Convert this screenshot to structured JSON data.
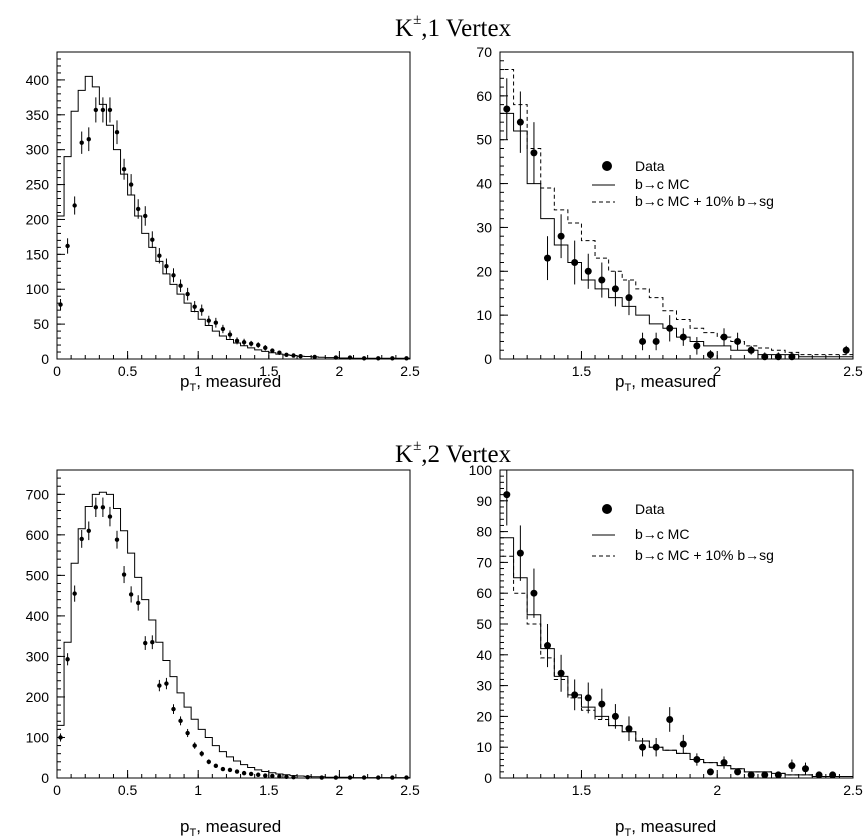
{
  "rows": [
    {
      "title_main": "K",
      "title_sup": "±",
      "title_rest": ",1 Vertex"
    },
    {
      "title_main": "K",
      "title_sup": "±",
      "title_rest": ",2 Vertex"
    }
  ],
  "legend": {
    "data": "Data",
    "mc": "b→c MC",
    "mc_sg": "b→c MC + 10% b→sg"
  },
  "chart_data": [
    {
      "type": "histogram",
      "xlim": [
        0,
        2.5
      ],
      "ylim": [
        0,
        440
      ],
      "xticks": [
        0,
        0.5,
        1,
        1.5,
        2,
        2.5
      ],
      "xtick_labels": [
        "0",
        "0.5",
        "1",
        "1.5",
        "2",
        "2.5"
      ],
      "yticks": [
        0,
        50,
        100,
        150,
        200,
        250,
        300,
        350,
        400
      ],
      "xlabel_main": "p",
      "xlabel_sub": "T",
      "xlabel_rest": ", measured",
      "grid": false,
      "legend": "none",
      "series": [
        {
          "kind": "step",
          "style": "solid",
          "edges": [
            0.0,
            0.05,
            0.1,
            0.15,
            0.2,
            0.25,
            0.3,
            0.35,
            0.4,
            0.45,
            0.5,
            0.55,
            0.6,
            0.65,
            0.7,
            0.75,
            0.8,
            0.85,
            0.9,
            0.95,
            1.0,
            1.05,
            1.1,
            1.15,
            1.2,
            1.25,
            1.3,
            1.35,
            1.4,
            1.45,
            1.5,
            1.55,
            1.6,
            1.65,
            1.7,
            1.75,
            1.8,
            1.85,
            1.9,
            1.95,
            2.0,
            2.05,
            2.1,
            2.15,
            2.2,
            2.25,
            2.3,
            2.35,
            2.4,
            2.45,
            2.5
          ],
          "values": [
            205,
            290,
            355,
            385,
            405,
            390,
            365,
            335,
            300,
            265,
            235,
            205,
            180,
            160,
            140,
            122,
            107,
            93,
            80,
            68,
            57,
            48,
            40,
            33,
            28,
            23,
            19,
            16,
            13,
            11,
            9,
            7,
            6,
            5,
            4,
            3.5,
            3,
            2.5,
            2,
            2,
            1.5,
            1.5,
            1,
            1,
            1,
            1,
            1,
            1,
            1,
            1
          ]
        }
      ],
      "points": {
        "x": [
          0.025,
          0.075,
          0.125,
          0.175,
          0.225,
          0.275,
          0.325,
          0.375,
          0.425,
          0.475,
          0.525,
          0.575,
          0.625,
          0.675,
          0.725,
          0.775,
          0.825,
          0.875,
          0.925,
          0.975,
          1.025,
          1.075,
          1.125,
          1.175,
          1.225,
          1.275,
          1.325,
          1.375,
          1.425,
          1.475,
          1.525,
          1.575,
          1.625,
          1.675,
          1.725,
          1.825,
          1.975,
          2.075,
          2.175,
          2.275,
          2.375,
          2.475
        ],
        "y": [
          78,
          162,
          220,
          310,
          315,
          357,
          357,
          357,
          325,
          272,
          250,
          215,
          205,
          171,
          148,
          133,
          120,
          105,
          93,
          75,
          70,
          55,
          52,
          43,
          35,
          26,
          24,
          22,
          20,
          16,
          12,
          9,
          6,
          5,
          4,
          3,
          2,
          2,
          1,
          1,
          1,
          1
        ],
        "err": [
          8,
          11,
          13,
          16,
          17,
          18,
          18,
          18,
          17,
          15,
          15,
          14,
          14,
          12,
          11,
          11,
          10,
          9,
          9,
          8,
          8,
          7,
          7,
          6,
          6,
          5,
          5,
          4,
          4,
          4,
          3,
          3,
          2,
          2,
          2,
          2,
          1,
          1,
          1,
          1,
          1,
          1
        ]
      }
    },
    {
      "type": "histogram",
      "xlim": [
        1.2,
        2.5
      ],
      "ylim": [
        0,
        70
      ],
      "xticks": [
        1.5,
        2,
        2.5
      ],
      "xtick_labels": [
        "1.5",
        "2",
        "2.5"
      ],
      "yticks": [
        0,
        10,
        20,
        30,
        40,
        50,
        60,
        70
      ],
      "xlabel_main": "p",
      "xlabel_sub": "T",
      "xlabel_rest": ", measured",
      "grid": false,
      "legend": "upper-middle",
      "series": [
        {
          "kind": "step",
          "style": "solid",
          "name": "b→c MC",
          "edges": [
            1.2,
            1.25,
            1.3,
            1.35,
            1.4,
            1.45,
            1.5,
            1.55,
            1.6,
            1.65,
            1.7,
            1.75,
            1.8,
            1.85,
            1.9,
            1.95,
            2.0,
            2.05,
            2.1,
            2.15,
            2.2,
            2.25,
            2.3,
            2.35,
            2.4,
            2.45,
            2.5
          ],
          "values": [
            56,
            52,
            40,
            32,
            26,
            22,
            18,
            16,
            14,
            12,
            10,
            8,
            7,
            5,
            4,
            3,
            3,
            2,
            2,
            1,
            1,
            1,
            0.5,
            0.5,
            0.5,
            0.5
          ]
        },
        {
          "kind": "step",
          "style": "dashed",
          "name": "b→c MC + 10% b→sg",
          "edges": [
            1.2,
            1.25,
            1.3,
            1.35,
            1.4,
            1.45,
            1.5,
            1.55,
            1.6,
            1.65,
            1.7,
            1.75,
            1.8,
            1.85,
            1.9,
            1.95,
            2.0,
            2.05,
            2.1,
            2.15,
            2.2,
            2.25,
            2.3,
            2.35,
            2.4,
            2.45,
            2.5
          ],
          "values": [
            66,
            58,
            48,
            39,
            34,
            31,
            27,
            23,
            20,
            18,
            16,
            14,
            11,
            9,
            7,
            6,
            5,
            4,
            3,
            2.5,
            2,
            1.5,
            1,
            1,
            1,
            1
          ]
        }
      ],
      "points": {
        "name": "Data",
        "x": [
          1.225,
          1.275,
          1.325,
          1.375,
          1.425,
          1.475,
          1.525,
          1.575,
          1.625,
          1.675,
          1.725,
          1.775,
          1.825,
          1.875,
          1.925,
          1.975,
          2.025,
          2.075,
          2.125,
          2.175,
          2.225,
          2.275,
          2.475
        ],
        "y": [
          57,
          54,
          47,
          23,
          28,
          22,
          20,
          18,
          16,
          14,
          4,
          4,
          7,
          5,
          3,
          1,
          5,
          4,
          2,
          0.5,
          0.5,
          0.5,
          2
        ],
        "err": [
          7,
          7,
          7,
          5,
          5,
          5,
          4,
          4,
          4,
          4,
          2,
          2,
          3,
          2,
          2,
          1,
          2,
          2,
          1,
          1,
          1,
          1,
          1
        ]
      }
    },
    {
      "type": "histogram",
      "xlim": [
        0,
        2.5
      ],
      "ylim": [
        0,
        760
      ],
      "xticks": [
        0,
        0.5,
        1,
        1.5,
        2,
        2.5
      ],
      "xtick_labels": [
        "0",
        "0.5",
        "1",
        "1.5",
        "2",
        "2.5"
      ],
      "yticks": [
        0,
        100,
        200,
        300,
        400,
        500,
        600,
        700
      ],
      "xlabel_main": "p",
      "xlabel_sub": "T",
      "xlabel_rest": ", measured",
      "grid": false,
      "legend": "none",
      "series": [
        {
          "kind": "step",
          "style": "solid",
          "edges": [
            0.0,
            0.05,
            0.1,
            0.15,
            0.2,
            0.25,
            0.3,
            0.35,
            0.4,
            0.45,
            0.5,
            0.55,
            0.6,
            0.65,
            0.7,
            0.75,
            0.8,
            0.85,
            0.9,
            0.95,
            1.0,
            1.05,
            1.1,
            1.15,
            1.2,
            1.25,
            1.3,
            1.35,
            1.4,
            1.45,
            1.5,
            1.55,
            1.6,
            1.65,
            1.7,
            1.75,
            1.8,
            1.85,
            1.9,
            1.95,
            2.0,
            2.05,
            2.1,
            2.15,
            2.2,
            2.25,
            2.3,
            2.35,
            2.4,
            2.45,
            2.5
          ],
          "values": [
            130,
            335,
            530,
            615,
            670,
            700,
            705,
            700,
            665,
            610,
            555,
            495,
            440,
            390,
            335,
            290,
            250,
            210,
            175,
            145,
            120,
            100,
            80,
            65,
            52,
            42,
            33,
            26,
            20,
            16,
            13,
            10,
            8,
            6,
            5,
            4,
            3,
            3,
            2,
            2,
            2,
            2,
            1,
            1,
            1,
            1,
            1,
            1,
            1,
            1
          ]
        }
      ],
      "points": {
        "x": [
          0.025,
          0.075,
          0.125,
          0.175,
          0.225,
          0.275,
          0.325,
          0.375,
          0.425,
          0.475,
          0.525,
          0.575,
          0.625,
          0.675,
          0.725,
          0.775,
          0.825,
          0.875,
          0.925,
          0.975,
          1.025,
          1.075,
          1.125,
          1.175,
          1.225,
          1.275,
          1.325,
          1.375,
          1.425,
          1.475,
          1.525,
          1.575,
          1.625,
          1.675,
          1.775,
          1.875,
          1.975,
          2.075,
          2.175,
          2.275,
          2.375,
          2.475
        ],
        "y": [
          100,
          293,
          455,
          590,
          610,
          668,
          668,
          645,
          588,
          502,
          453,
          432,
          333,
          335,
          228,
          233,
          170,
          141,
          111,
          80,
          60,
          40,
          30,
          22,
          20,
          16,
          12,
          10,
          8,
          6,
          5,
          4,
          3,
          2,
          2,
          1,
          1,
          1,
          1,
          1,
          1,
          1
        ],
        "err": [
          10,
          15,
          20,
          22,
          23,
          24,
          24,
          24,
          22,
          21,
          20,
          19,
          17,
          17,
          14,
          14,
          12,
          11,
          10,
          8,
          7,
          6,
          5,
          4,
          4,
          4,
          3,
          3,
          2,
          2,
          2,
          2,
          1,
          1,
          1,
          1,
          1,
          1,
          1,
          1,
          1,
          1
        ]
      }
    },
    {
      "type": "histogram",
      "xlim": [
        1.2,
        2.5
      ],
      "ylim": [
        0,
        100
      ],
      "xticks": [
        1.5,
        2,
        2.5
      ],
      "xtick_labels": [
        "1.5",
        "2",
        "2.5"
      ],
      "yticks": [
        0,
        10,
        20,
        30,
        40,
        50,
        60,
        70,
        80,
        90,
        100
      ],
      "xlabel_main": "p",
      "xlabel_sub": "T",
      "xlabel_rest": ", measured",
      "grid": false,
      "legend": "upper-middle",
      "series": [
        {
          "kind": "step",
          "style": "solid",
          "name": "b→c MC",
          "edges": [
            1.2,
            1.25,
            1.3,
            1.35,
            1.4,
            1.45,
            1.5,
            1.55,
            1.6,
            1.65,
            1.7,
            1.75,
            1.8,
            1.85,
            1.9,
            1.95,
            2.0,
            2.05,
            2.1,
            2.15,
            2.2,
            2.25,
            2.3,
            2.35,
            2.4,
            2.45,
            2.5
          ],
          "values": [
            78,
            65,
            53,
            42,
            33,
            27,
            23,
            20,
            17,
            15,
            12,
            10,
            9,
            8,
            6,
            5,
            4,
            3,
            2,
            2,
            1.5,
            1,
            1,
            0.5,
            0.5,
            0.5
          ]
        },
        {
          "kind": "step",
          "style": "dashed",
          "name": "b→c MC + 10% b→sg",
          "edges": [
            1.2,
            1.25,
            1.3,
            1.35,
            1.4,
            1.45,
            1.5,
            1.55,
            1.6,
            1.65,
            1.7,
            1.75,
            1.8,
            1.85,
            1.9,
            1.95,
            2.0,
            2.05,
            2.1,
            2.15,
            2.2,
            2.25,
            2.3,
            2.35,
            2.4,
            2.45,
            2.5
          ],
          "values": [
            72,
            60,
            50,
            39,
            32,
            26,
            22,
            19,
            17,
            15,
            12,
            10,
            9,
            8,
            6,
            5,
            4,
            3,
            2,
            2,
            1.5,
            1,
            1,
            0.5,
            0.5,
            0.5
          ]
        }
      ],
      "points": {
        "name": "Data",
        "x": [
          1.225,
          1.275,
          1.325,
          1.375,
          1.425,
          1.475,
          1.525,
          1.575,
          1.625,
          1.675,
          1.725,
          1.775,
          1.825,
          1.875,
          1.925,
          1.975,
          2.025,
          2.075,
          2.125,
          2.175,
          2.225,
          2.275,
          2.325,
          2.375,
          2.425
        ],
        "y": [
          92,
          73,
          60,
          43,
          34,
          27,
          26,
          24,
          20,
          16,
          10,
          10,
          19,
          11,
          6,
          2,
          5,
          2,
          1,
          1,
          1,
          4,
          3,
          1,
          1
        ],
        "err": [
          10,
          9,
          8,
          7,
          6,
          5,
          5,
          5,
          4,
          4,
          3,
          3,
          4,
          3,
          2,
          1,
          2,
          1,
          1,
          1,
          1,
          2,
          2,
          1,
          1
        ]
      }
    }
  ]
}
